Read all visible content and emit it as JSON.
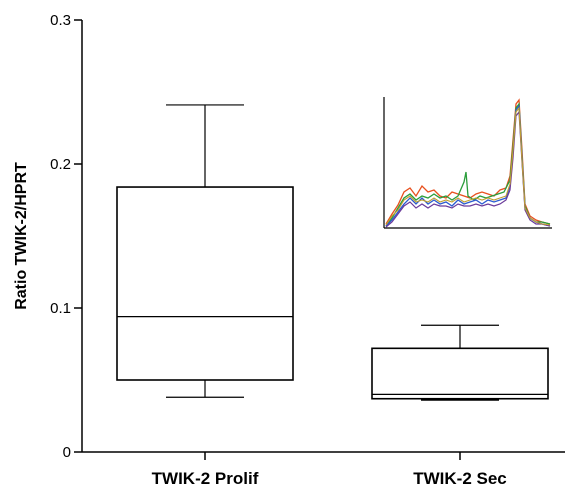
{
  "chart_data": {
    "type": "box",
    "title": "",
    "xlabel": "",
    "ylabel": "Ratio TWIK-2/HPRT",
    "ylim": [
      0,
      0.3
    ],
    "yticks": [
      {
        "value": 0,
        "label": "0"
      },
      {
        "value": 0.1,
        "label": "0.1"
      },
      {
        "value": 0.2,
        "label": "0.2"
      },
      {
        "value": 0.3,
        "label": "0.3"
      }
    ],
    "categories": [
      "TWIK-2 Prolif",
      "TWIK-2 Sec"
    ],
    "boxes": [
      {
        "category": "TWIK-2 Prolif",
        "min": 0.038,
        "q1": 0.05,
        "median": 0.094,
        "q3": 0.184,
        "max": 0.241
      },
      {
        "category": "TWIK-2 Sec",
        "min": 0.036,
        "q1": 0.037,
        "median": 0.04,
        "q3": 0.072,
        "max": 0.088
      }
    ],
    "grid": false,
    "inset": {
      "type": "line",
      "description_visible": "chromatogram traces",
      "colors": [
        "#e8501e",
        "#2a9d3a",
        "#2a5bd0",
        "#6a3a9a",
        "#c0a030"
      ]
    }
  }
}
